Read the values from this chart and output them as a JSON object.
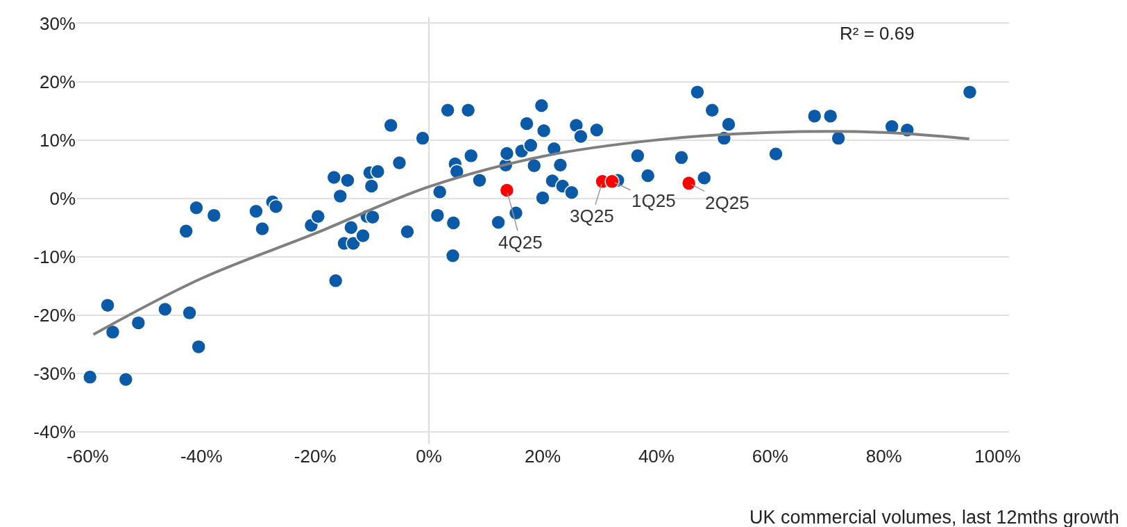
{
  "chart_data": {
    "type": "scatter",
    "xlabel": "UK commercial volumes, last 12mths growth",
    "marker": "circle",
    "grid": "y",
    "xlim": [
      -62,
      102
    ],
    "ylim": [
      -42,
      31
    ],
    "xticks": [
      {
        "value": -60,
        "label": "-60%"
      },
      {
        "value": -40,
        "label": "-40%"
      },
      {
        "value": -20,
        "label": "-20%"
      },
      {
        "value": 0,
        "label": "0%"
      },
      {
        "value": 20,
        "label": "20%"
      },
      {
        "value": 40,
        "label": "40%"
      },
      {
        "value": 60,
        "label": "60%"
      },
      {
        "value": 80,
        "label": "80%"
      },
      {
        "value": 100,
        "label": "100%"
      }
    ],
    "yticks": [
      {
        "value": -40,
        "label": "-40%"
      },
      {
        "value": -30,
        "label": "-30%"
      },
      {
        "value": -20,
        "label": "-20%"
      },
      {
        "value": -10,
        "label": "-10%"
      },
      {
        "value": 0,
        "label": "0%"
      },
      {
        "value": 10,
        "label": "10%"
      },
      {
        "value": 20,
        "label": "20%"
      },
      {
        "value": 30,
        "label": "30%"
      }
    ],
    "ref_lines": [
      {
        "axis": "x",
        "value": 0,
        "color": "#d0d0d0"
      }
    ],
    "series": [
      {
        "color": "#0b5aa8",
        "x": [
          -59.6,
          -56.5,
          -55.6,
          -53.3,
          -51.1,
          -46.4,
          -42.7,
          -42.1,
          -40.9,
          -40.5,
          -37.8,
          -30.4,
          -29.3,
          -27.5,
          -26.9,
          -20.7,
          -19.5,
          -16.7,
          -16.4,
          -15.6,
          -14.9,
          -14.3,
          -13.7,
          -13.3,
          -11.6,
          -10.9,
          -10.4,
          -10.1,
          -9.9,
          -9.0,
          -6.7,
          -5.2,
          -3.8,
          -1.1,
          1.5,
          1.9,
          3.3,
          4.3,
          4.2,
          4.6,
          4.9,
          6.9,
          7.4,
          8.9,
          12.2,
          13.5,
          13.7,
          15.3,
          16.3,
          17.2,
          17.9,
          18.5,
          19.8,
          20.0,
          20.2,
          22.0,
          21.7,
          23.1,
          23.5,
          25.1,
          25.9,
          26.7,
          29.5,
          33.2,
          36.7,
          38.5,
          44.4,
          47.2,
          48.4,
          49.8,
          51.9,
          52.7,
          61.0,
          67.8,
          70.6,
          72.0,
          81.4,
          84.1,
          95.1
        ],
        "values": [
          -30.6,
          -18.3,
          -22.9,
          -31.0,
          -21.3,
          -19.0,
          -5.6,
          -19.6,
          -1.6,
          -25.4,
          -2.9,
          -2.2,
          -5.2,
          -0.6,
          -1.4,
          -4.6,
          -3.1,
          3.6,
          -14.1,
          0.4,
          -7.7,
          3.1,
          -5.0,
          -7.7,
          -6.4,
          -3.1,
          4.4,
          2.1,
          -3.2,
          4.6,
          12.5,
          6.1,
          -5.7,
          10.3,
          -2.9,
          1.1,
          15.1,
          -4.2,
          -9.8,
          5.9,
          4.6,
          15.1,
          7.3,
          3.1,
          -4.1,
          5.7,
          7.7,
          -2.5,
          8.1,
          12.8,
          9.1,
          5.6,
          15.9,
          0.1,
          11.6,
          8.5,
          3.0,
          5.7,
          2.1,
          1.0,
          12.5,
          10.6,
          11.7,
          3.1,
          7.3,
          3.9,
          7.0,
          18.2,
          3.5,
          15.1,
          10.3,
          12.7,
          7.6,
          14.1,
          14.1,
          10.3,
          12.3,
          11.7,
          18.2
        ]
      },
      {
        "type": "line",
        "color": "#7f7f7f",
        "marker": "none",
        "x": [
          -59,
          -40,
          -20,
          0,
          20,
          40,
          60,
          80,
          95
        ],
        "values": [
          -23.3,
          -13.7,
          -6.0,
          2.0,
          7.2,
          10.0,
          11.3,
          11.3,
          10.2
        ]
      },
      {
        "color": "#ff0000",
        "x": [
          13.7,
          30.5,
          32.2,
          45.7
        ],
        "values": [
          1.4,
          2.9,
          2.9,
          2.6
        ]
      }
    ],
    "annotations": [
      {
        "text": "4Q25",
        "x": 13.7,
        "y": 1.4
      },
      {
        "text": "3Q25",
        "x": 30.5,
        "y": 2.9
      },
      {
        "text": "1Q25",
        "x": 32.2,
        "y": 2.9
      },
      {
        "text": "2Q25",
        "x": 45.7,
        "y": 2.6
      },
      "R² = 0.69"
    ]
  }
}
